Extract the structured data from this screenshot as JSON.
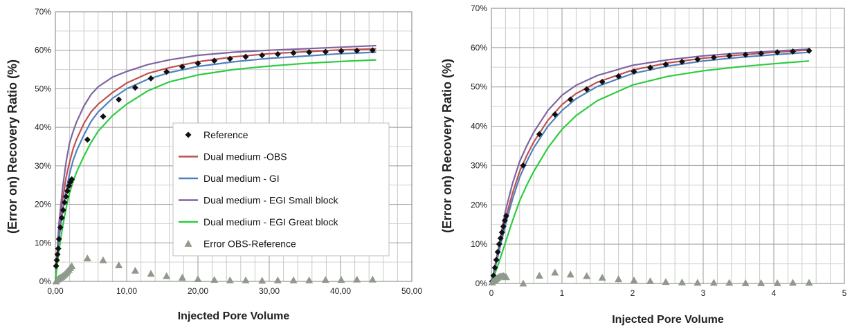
{
  "chart_data": [
    {
      "type": "line",
      "xlabel": "Injected Pore Volume",
      "ylabel": "(Error on) Recovery Ratio (%)",
      "xlim": [
        0,
        50
      ],
      "ylim": [
        0,
        70
      ],
      "x_ticks": [
        "0,00",
        "10,00",
        "20,00",
        "30,00",
        "40,00",
        "50,00"
      ],
      "y_ticks": [
        "0%",
        "10%",
        "20%",
        "30%",
        "40%",
        "50%",
        "60%",
        "70%"
      ],
      "grid": true,
      "legend": "center-right",
      "series": [
        {
          "name": "Reference",
          "kind": "marker",
          "marker": "diamond",
          "color": "#111111",
          "x": [
            0.1,
            0.2,
            0.3,
            0.4,
            0.5,
            0.7,
            0.9,
            1.1,
            1.3,
            1.5,
            1.7,
            1.9,
            2.1,
            2.3,
            4.5,
            6.7,
            8.9,
            11.2,
            13.4,
            15.6,
            17.8,
            20,
            22.3,
            24.5,
            26.7,
            29,
            31.2,
            33.4,
            35.6,
            37.9,
            40.1,
            42.3,
            44.5
          ],
          "y": [
            4,
            5.5,
            7,
            8.5,
            11,
            14,
            16.5,
            18.5,
            20.5,
            22,
            23.5,
            24.8,
            25.8,
            26.5,
            36.8,
            42.8,
            47.2,
            50.3,
            52.7,
            54.4,
            55.7,
            56.6,
            57.3,
            57.8,
            58.3,
            58.7,
            59,
            59.3,
            59.5,
            59.6,
            59.8,
            59.9,
            60
          ]
        },
        {
          "name": "Dual medium -OBS",
          "kind": "line",
          "color": "#c0504d",
          "x": [
            0,
            0.5,
            1,
            1.5,
            2,
            2.5,
            3,
            4,
            5,
            6,
            8,
            10,
            13,
            16,
            20,
            25,
            30,
            35,
            40,
            45
          ],
          "y": [
            0,
            13,
            21,
            27,
            31,
            34.5,
            37,
            41,
            44,
            46,
            49,
            51.5,
            54,
            55.5,
            57,
            58.3,
            59.1,
            59.6,
            60.1,
            60.4
          ]
        },
        {
          "name": "Dual medium - GI",
          "kind": "line",
          "color": "#4f81bd",
          "x": [
            0,
            0.5,
            1,
            1.5,
            2,
            2.5,
            3,
            4,
            5,
            6,
            8,
            10,
            13,
            16,
            20,
            25,
            30,
            35,
            40,
            45
          ],
          "y": [
            0,
            11,
            18,
            23.5,
            28,
            31.5,
            34,
            38,
            41.5,
            44,
            47.5,
            50,
            52.5,
            54.2,
            55.8,
            57,
            57.9,
            58.5,
            59.1,
            59.5
          ]
        },
        {
          "name": "Dual medium - EGI Small block",
          "kind": "line",
          "color": "#8064a2",
          "x": [
            0,
            0.5,
            1,
            1.5,
            2,
            2.5,
            3,
            4,
            5,
            6,
            8,
            10,
            13,
            16,
            20,
            25,
            30,
            35,
            40,
            45
          ],
          "y": [
            0,
            15,
            24,
            31,
            36,
            39,
            41.5,
            45.5,
            48.5,
            50.5,
            53,
            54.5,
            56.3,
            57.5,
            58.7,
            59.5,
            60,
            60.4,
            60.8,
            61.2
          ]
        },
        {
          "name": "Dual medium - EGI Great block",
          "kind": "line",
          "color": "#2ecc40",
          "x": [
            0,
            0.5,
            1,
            1.5,
            2,
            2.5,
            3,
            4,
            5,
            6,
            8,
            10,
            13,
            16,
            20,
            25,
            30,
            35,
            40,
            45
          ],
          "y": [
            0,
            8,
            14,
            19,
            23,
            26,
            28.5,
            32.5,
            36,
            39,
            43,
            46,
            49.5,
            51.8,
            53.6,
            55,
            55.9,
            56.6,
            57.1,
            57.5
          ]
        },
        {
          "name": "Error OBS-Reference",
          "kind": "marker",
          "marker": "triangle",
          "color": "#8e9a8a",
          "x": [
            0.1,
            0.3,
            0.5,
            0.7,
            0.9,
            1.1,
            1.3,
            1.5,
            1.7,
            1.9,
            2.1,
            2.3,
            4.5,
            6.7,
            8.9,
            11.2,
            13.4,
            15.6,
            17.8,
            20,
            22.3,
            24.5,
            26.7,
            29,
            31.2,
            33.4,
            35.6,
            37.9,
            40.1,
            42.3,
            44.5
          ],
          "y": [
            0,
            0.5,
            0.8,
            1,
            1.2,
            1.5,
            1.8,
            2.2,
            2.6,
            3,
            3.5,
            4,
            6,
            5.5,
            4.2,
            2.8,
            2,
            1.4,
            1,
            0.6,
            0.4,
            0.3,
            0.3,
            0.2,
            0.3,
            0.3,
            0.3,
            0.4,
            0.4,
            0.5,
            0.5
          ]
        }
      ]
    },
    {
      "type": "line",
      "xlabel": "Injected Pore Volume",
      "ylabel": "(Error on) Recovery Ratio (%)",
      "xlim": [
        0,
        5
      ],
      "ylim": [
        0,
        70
      ],
      "x_ticks": [
        "0",
        "1",
        "2",
        "3",
        "4",
        "5"
      ],
      "y_ticks": [
        "0%",
        "10%",
        "20%",
        "30%",
        "40%",
        "50%",
        "60%",
        "70%"
      ],
      "grid": true,
      "series": [
        {
          "name": "Reference",
          "kind": "marker",
          "marker": "diamond",
          "color": "#111111",
          "x": [
            0.01,
            0.03,
            0.05,
            0.07,
            0.09,
            0.11,
            0.13,
            0.15,
            0.17,
            0.19,
            0.21,
            0.45,
            0.68,
            0.9,
            1.12,
            1.35,
            1.57,
            1.8,
            2.02,
            2.25,
            2.47,
            2.7,
            2.92,
            3.15,
            3.37,
            3.6,
            3.82,
            4.05,
            4.27,
            4.5
          ],
          "y": [
            0.5,
            2,
            4,
            6,
            8,
            10,
            11.5,
            13,
            14.5,
            16,
            17.2,
            30,
            38,
            43,
            46.8,
            49.4,
            51.3,
            52.7,
            53.9,
            54.9,
            55.7,
            56.4,
            57,
            57.5,
            57.9,
            58.2,
            58.5,
            58.8,
            59,
            59.2
          ]
        },
        {
          "name": "Dual medium -OBS",
          "kind": "line",
          "color": "#c0504d",
          "x": [
            0,
            0.1,
            0.2,
            0.3,
            0.4,
            0.5,
            0.6,
            0.8,
            1,
            1.2,
            1.5,
            2,
            2.5,
            3,
            3.5,
            4,
            4.5
          ],
          "y": [
            0,
            8,
            16.5,
            23,
            28.5,
            32.5,
            36,
            41.5,
            45.5,
            48.3,
            51.2,
            54.3,
            56.1,
            57.3,
            58.1,
            58.8,
            59.4
          ]
        },
        {
          "name": "Dual medium - GI",
          "kind": "line",
          "color": "#4f81bd",
          "x": [
            0,
            0.1,
            0.2,
            0.3,
            0.4,
            0.5,
            0.6,
            0.8,
            1,
            1.2,
            1.5,
            2,
            2.5,
            3,
            3.5,
            4,
            4.5
          ],
          "y": [
            0,
            7.5,
            15,
            21.5,
            27,
            31,
            34.5,
            40,
            44,
            47,
            50.1,
            53.4,
            55.3,
            56.6,
            57.5,
            58.2,
            58.8
          ]
        },
        {
          "name": "Dual medium - EGI Small block",
          "kind": "line",
          "color": "#8064a2",
          "x": [
            0,
            0.1,
            0.2,
            0.3,
            0.4,
            0.5,
            0.6,
            0.8,
            1,
            1.2,
            1.5,
            2,
            2.5,
            3,
            3.5,
            4,
            4.5
          ],
          "y": [
            0,
            9,
            18.5,
            25.5,
            31,
            35,
            38.5,
            44,
            47.9,
            50.4,
            52.9,
            55.5,
            56.9,
            57.9,
            58.6,
            59.1,
            59.6
          ]
        },
        {
          "name": "Dual medium - EGI Great block",
          "kind": "line",
          "color": "#2ecc40",
          "x": [
            0,
            0.1,
            0.2,
            0.3,
            0.4,
            0.5,
            0.6,
            0.8,
            1,
            1.2,
            1.5,
            2,
            2.5,
            3,
            3.5,
            4,
            4.5
          ],
          "y": [
            0,
            5,
            10.5,
            16,
            21,
            25,
            28.5,
            34.5,
            39.2,
            42.7,
            46.5,
            50.5,
            52.7,
            54.1,
            55.1,
            55.9,
            56.6
          ]
        },
        {
          "name": "Error OBS-Reference",
          "kind": "marker",
          "marker": "triangle",
          "color": "#8e9a8a",
          "x": [
            0.01,
            0.03,
            0.05,
            0.07,
            0.09,
            0.11,
            0.13,
            0.15,
            0.17,
            0.19,
            0.21,
            0.45,
            0.68,
            0.9,
            1.12,
            1.35,
            1.57,
            1.8,
            2.02,
            2.25,
            2.47,
            2.7,
            2.92,
            3.15,
            3.37,
            3.6,
            3.82,
            4.05,
            4.27,
            4.5
          ],
          "y": [
            0.3,
            0.6,
            0.9,
            1.2,
            1.5,
            1.7,
            1.8,
            1.9,
            1.9,
            1.8,
            1.6,
            0,
            2,
            2.8,
            2.3,
            1.9,
            1.5,
            1.1,
            0.8,
            0.6,
            0.4,
            0.3,
            0.2,
            0.2,
            0.2,
            0.1,
            0.1,
            0.1,
            0.2,
            0.2
          ]
        }
      ]
    }
  ]
}
